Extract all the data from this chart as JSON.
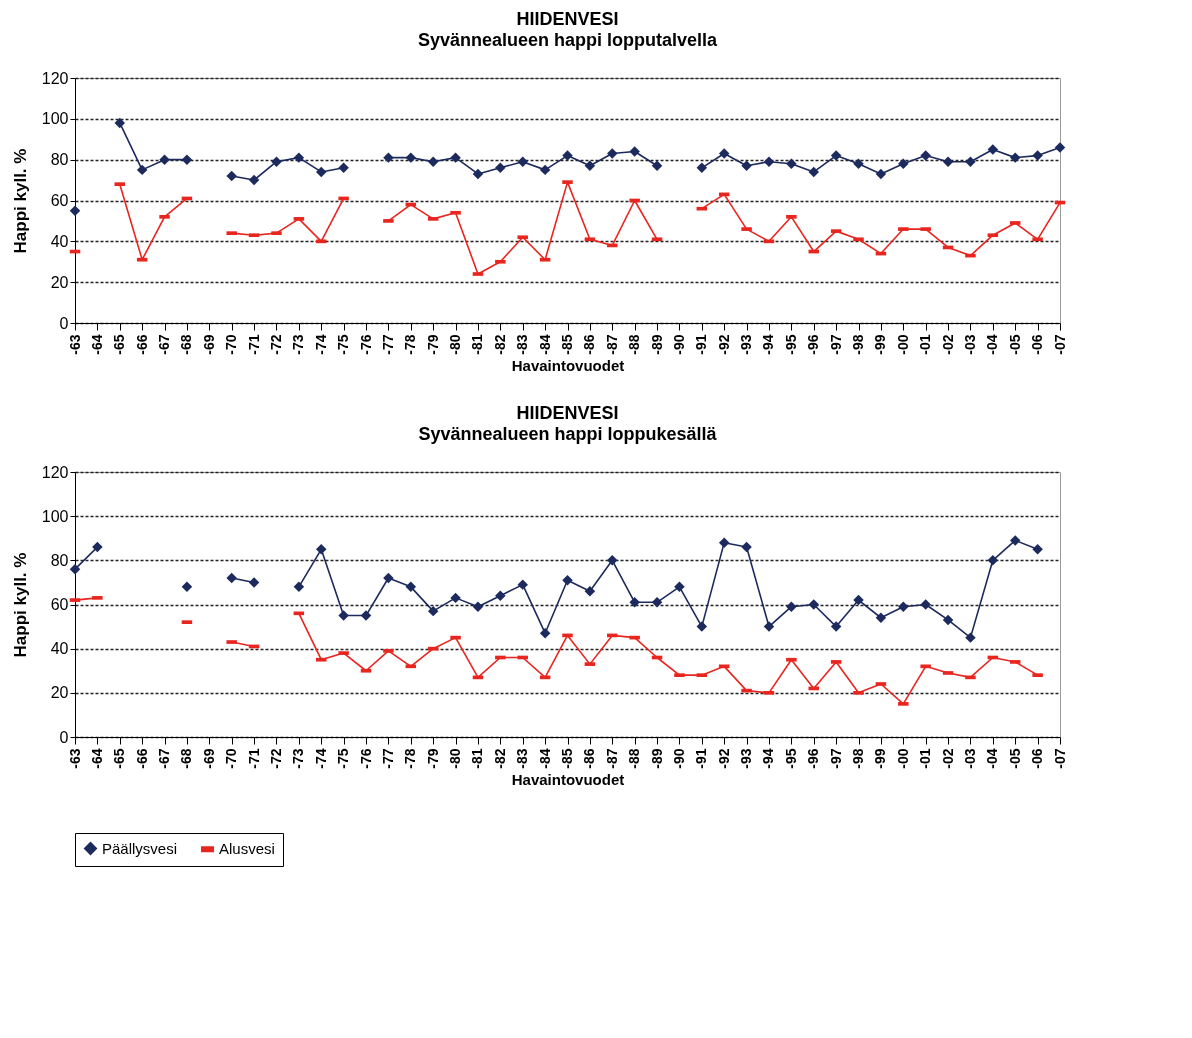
{
  "chart_data": [
    {
      "type": "line",
      "title": "HIIDENVESI",
      "subtitle": "Syvännealueen happi lopputalvella",
      "xlabel": "Havaintovuodet",
      "ylabel": "Happi kyll. %",
      "categories": [
        "-63",
        "-64",
        "-65",
        "-66",
        "-67",
        "-68",
        "-69",
        "-70",
        "-71",
        "-72",
        "-73",
        "-74",
        "-75",
        "-76",
        "-77",
        "-78",
        "-79",
        "-80",
        "-81",
        "-82",
        "-83",
        "-84",
        "-85",
        "-86",
        "-87",
        "-88",
        "-89",
        "-90",
        "-91",
        "-92",
        "-93",
        "-94",
        "-95",
        "-96",
        "-97",
        "-98",
        "-99",
        "-00",
        "-01",
        "-02",
        "-03",
        "-04",
        "-05",
        "-06",
        "-07"
      ],
      "series": [
        {
          "name": "Päällysvesi",
          "color": "#1c2a5e",
          "marker": "diamond",
          "values": [
            55,
            null,
            98,
            75,
            80,
            80,
            null,
            72,
            70,
            79,
            81,
            74,
            76,
            null,
            81,
            81,
            79,
            81,
            73,
            76,
            79,
            75,
            82,
            77,
            83,
            84,
            77,
            null,
            76,
            83,
            77,
            79,
            78,
            74,
            82,
            78,
            73,
            78,
            82,
            79,
            79,
            85,
            81,
            82,
            86
          ]
        },
        {
          "name": "Alusvesi",
          "color": "#e8251f",
          "marker": "square",
          "values": [
            35,
            null,
            68,
            31,
            52,
            61,
            null,
            44,
            43,
            44,
            51,
            40,
            61,
            null,
            50,
            58,
            51,
            54,
            24,
            30,
            42,
            31,
            69,
            41,
            38,
            60,
            41,
            null,
            56,
            63,
            46,
            40,
            52,
            35,
            45,
            41,
            34,
            46,
            46,
            37,
            33,
            43,
            49,
            41,
            59
          ]
        }
      ],
      "ylim": [
        0,
        120
      ],
      "yticks": [
        0,
        20,
        40,
        60,
        80,
        100,
        120
      ],
      "grid": "y",
      "legend": "bottom",
      "line_style": "solid"
    },
    {
      "type": "line",
      "title": "HIIDENVESI",
      "subtitle": "Syvännealueen happi loppukesällä",
      "xlabel": "Havaintovuodet",
      "ylabel": "Happi kyll. %",
      "categories": [
        "-63",
        "-64",
        "-65",
        "-66",
        "-67",
        "-68",
        "-69",
        "-70",
        "-71",
        "-72",
        "-73",
        "-74",
        "-75",
        "-76",
        "-77",
        "-78",
        "-79",
        "-80",
        "-81",
        "-82",
        "-83",
        "-84",
        "-85",
        "-86",
        "-87",
        "-88",
        "-89",
        "-90",
        "-91",
        "-92",
        "-93",
        "-94",
        "-95",
        "-96",
        "-97",
        "-98",
        "-99",
        "-00",
        "-01",
        "-02",
        "-03",
        "-04",
        "-05",
        "-06",
        "-07"
      ],
      "series": [
        {
          "name": "Päällysvesi",
          "color": "#1c2a5e",
          "marker": "diamond",
          "values": [
            76,
            86,
            null,
            null,
            null,
            68,
            null,
            72,
            70,
            null,
            68,
            85,
            55,
            55,
            72,
            68,
            57,
            63,
            59,
            64,
            69,
            47,
            71,
            66,
            80,
            61,
            61,
            68,
            50,
            88,
            86,
            50,
            59,
            60,
            50,
            62,
            54,
            59,
            60,
            53,
            45,
            80,
            89,
            85,
            null
          ]
        },
        {
          "name": "Alusvesi",
          "color": "#e8251f",
          "marker": "square",
          "values": [
            62,
            63,
            null,
            null,
            null,
            52,
            null,
            43,
            41,
            null,
            56,
            35,
            38,
            30,
            39,
            32,
            40,
            45,
            27,
            36,
            36,
            27,
            46,
            33,
            46,
            45,
            36,
            28,
            28,
            32,
            21,
            20,
            35,
            22,
            34,
            20,
            24,
            15,
            32,
            29,
            27,
            36,
            34,
            28,
            null
          ]
        }
      ],
      "ylim": [
        0,
        120
      ],
      "yticks": [
        0,
        20,
        40,
        60,
        80,
        100,
        120
      ],
      "grid": "y",
      "legend": "bottom",
      "line_style": "solid"
    }
  ]
}
